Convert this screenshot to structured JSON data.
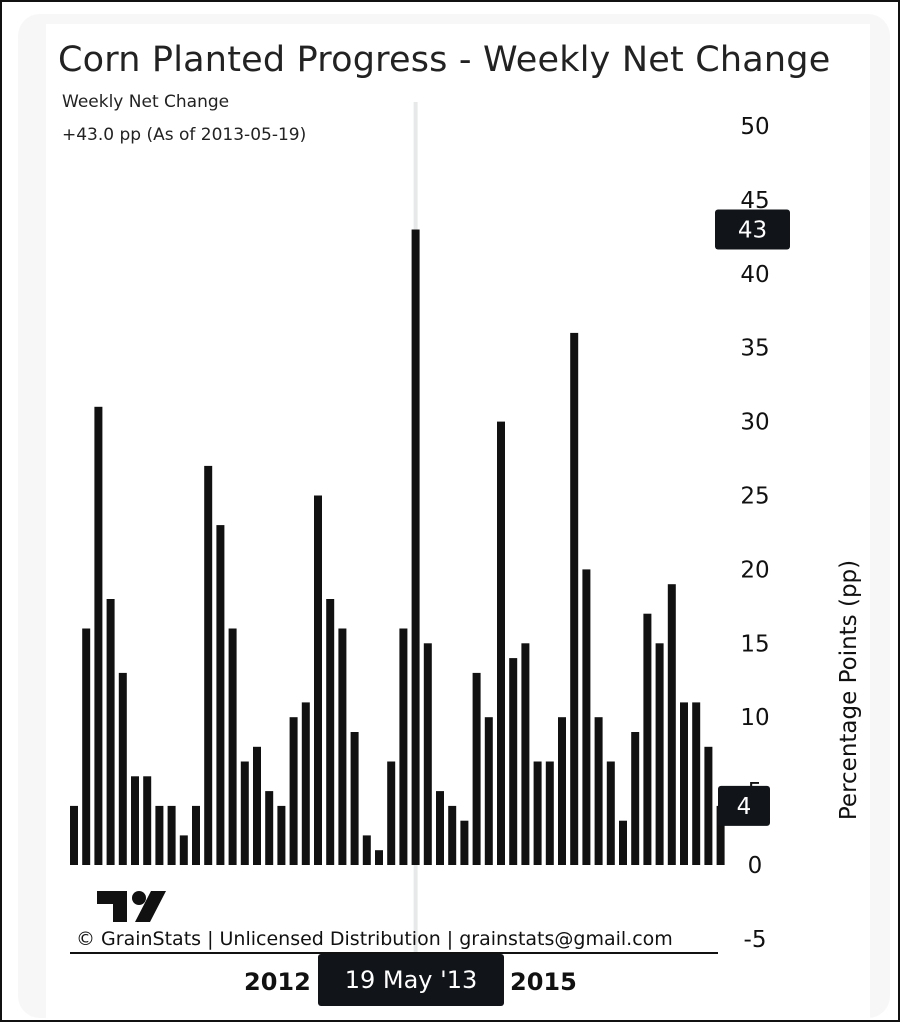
{
  "title": "Corn Planted Progress - Weekly Net Change",
  "subtitle": "Weekly Net Change",
  "value_line": "+43.0 pp (As of 2013-05-19)",
  "ylabel": "Percentage Points (pp)",
  "copyright": "© GrainStats | Unlicensed Distribution | grainstats@gmail.com",
  "cursor_date": "19 May '13",
  "x_ticks": [
    "2012",
    "2015"
  ],
  "badges": {
    "hover_value": "43",
    "last_value": "4"
  },
  "colors": {
    "bar": "#111111",
    "badge": "#111419",
    "crosshair": "#e6e8ea"
  },
  "chart_data": {
    "type": "bar",
    "title": "Corn Planted Progress - Weekly Net Change",
    "xlabel": "",
    "ylabel": "Percentage Points (pp)",
    "ylim": [
      -5,
      50
    ],
    "yticks": [
      50,
      45,
      40,
      35,
      30,
      25,
      20,
      15,
      10,
      5,
      0,
      -5
    ],
    "series": [
      {
        "name": "Weekly Net Change",
        "values": [
          4,
          16,
          31,
          18,
          13,
          6,
          6,
          4,
          4,
          2,
          4,
          27,
          23,
          16,
          7,
          8,
          5,
          4,
          10,
          11,
          25,
          18,
          16,
          9,
          2,
          1,
          7,
          16,
          43,
          15,
          5,
          4,
          3,
          13,
          10,
          30,
          14,
          15,
          7,
          7,
          10,
          36,
          20,
          10,
          7,
          3,
          9,
          17,
          15,
          19,
          11,
          11,
          8,
          4
        ]
      }
    ],
    "highlight": {
      "date": "2013-05-19",
      "value": 43
    },
    "last_value": 4
  }
}
